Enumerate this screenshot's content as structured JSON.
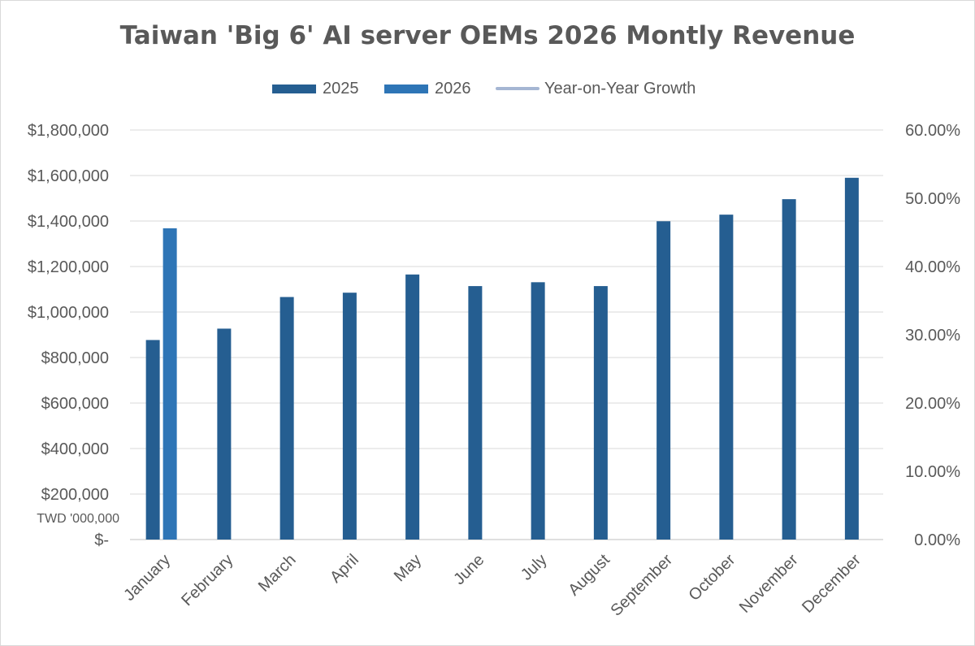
{
  "title": "Taiwan 'Big 6' AI server OEMs 2026 Montly Revenue",
  "legend": [
    {
      "name": "2025",
      "kind": "bar",
      "color": "#255e91"
    },
    {
      "name": "2026",
      "kind": "bar",
      "color": "#2e75b6"
    },
    {
      "name": "Year-on-Year Growth",
      "kind": "line",
      "color": "#a5b6d3"
    }
  ],
  "unit_label": "TWD '000,000",
  "chart_data": {
    "type": "bar",
    "title": "Taiwan 'Big 6' AI server OEMs 2026 Montly Revenue",
    "categories": [
      "January",
      "February",
      "March",
      "April",
      "May",
      "June",
      "July",
      "August",
      "September",
      "October",
      "November",
      "December"
    ],
    "series": [
      {
        "name": "2025",
        "axis": "left",
        "color": "#255e91",
        "values": [
          877000,
          927000,
          1066000,
          1085000,
          1165000,
          1114000,
          1131000,
          1114000,
          1399000,
          1428000,
          1496000,
          1590000
        ]
      },
      {
        "name": "2026",
        "axis": "left",
        "color": "#2e75b6",
        "values": [
          1368000,
          null,
          null,
          null,
          null,
          null,
          null,
          null,
          null,
          null,
          null,
          null
        ]
      },
      {
        "name": "Year-on-Year Growth",
        "axis": "right",
        "type": "line",
        "color": "#a5b6d3",
        "values": [
          null,
          null,
          null,
          null,
          null,
          null,
          null,
          null,
          null,
          null,
          null,
          null
        ]
      }
    ],
    "y_left": {
      "min": 0,
      "max": 1800000,
      "step": 200000,
      "tick_labels": [
        "$-",
        "$200,000",
        "$400,000",
        "$600,000",
        "$800,000",
        "$1,000,000",
        "$1,200,000",
        "$1,400,000",
        "$1,600,000",
        "$1,800,000"
      ]
    },
    "y_right": {
      "min": 0,
      "max": 0.6,
      "step": 0.1,
      "tick_labels": [
        "0.00%",
        "10.00%",
        "20.00%",
        "30.00%",
        "40.00%",
        "50.00%",
        "60.00%"
      ]
    },
    "grid": true,
    "legend_position": "top"
  }
}
